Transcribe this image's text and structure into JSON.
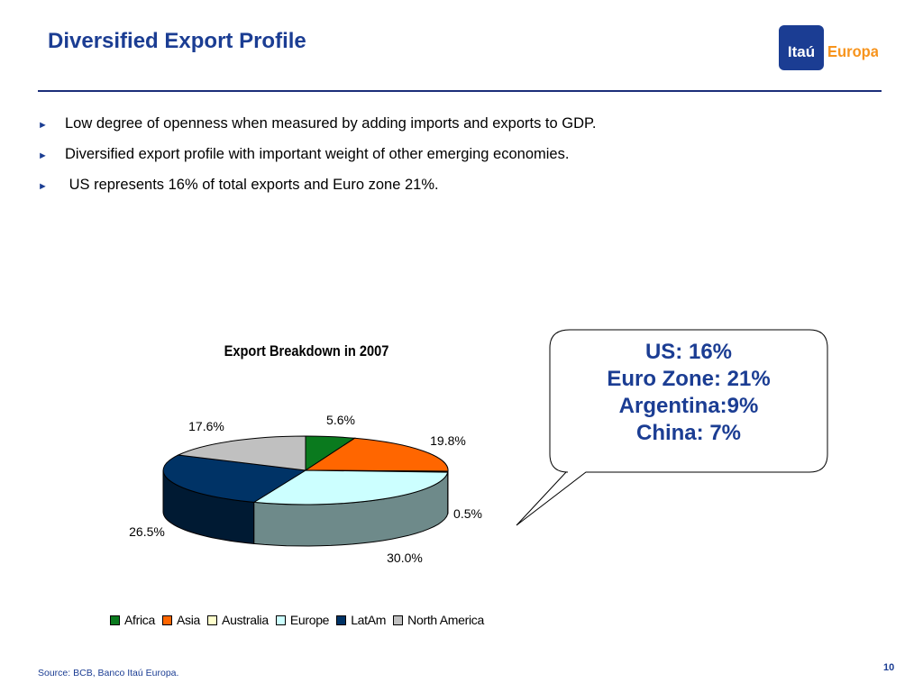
{
  "slide": {
    "title": "Diversified Export Profile",
    "logo": {
      "brand_left": "Itaú",
      "brand_right": "Europa",
      "colors": {
        "box": "#1b3d93",
        "left_text": "#ffffff",
        "right_text": "#f7941d"
      }
    },
    "bullets": [
      "Low degree of openness when measured by adding imports and exports to GDP.",
      "Diversified export profile with important weight of other emerging economies.",
      " US represents 16% of total exports and Euro zone 21%."
    ],
    "bullet_marker": "►",
    "callout": {
      "lines": [
        "US: 16%",
        "Euro Zone: 21%",
        "Argentina:9%",
        "China: 7%"
      ]
    },
    "source": "Source: BCB, Banco Itaú Europa.",
    "page_number": "10",
    "accent_color": "#1b3d93"
  },
  "chart_data": {
    "type": "pie",
    "style": "3d",
    "title": "Export Breakdown in 2007",
    "categories": [
      "Africa",
      "Asia",
      "Australia",
      "Europe",
      "LatAm",
      "North America"
    ],
    "values": [
      5.6,
      19.8,
      0.5,
      30.0,
      26.5,
      17.6
    ],
    "labels": [
      "5.6%",
      "19.8%",
      "0.5%",
      "30.0%",
      "26.5%",
      "17.6%"
    ],
    "colors": [
      "#0a7a1e",
      "#ff6600",
      "#ffffcc",
      "#ccffff",
      "#003366",
      "#c0c0c0"
    ],
    "side_colors": [
      "#054d12",
      "#a84200",
      "#a8a87a",
      "#6e8a8a",
      "#001a33",
      "#7a7a7a"
    ],
    "legend_position": "bottom"
  }
}
